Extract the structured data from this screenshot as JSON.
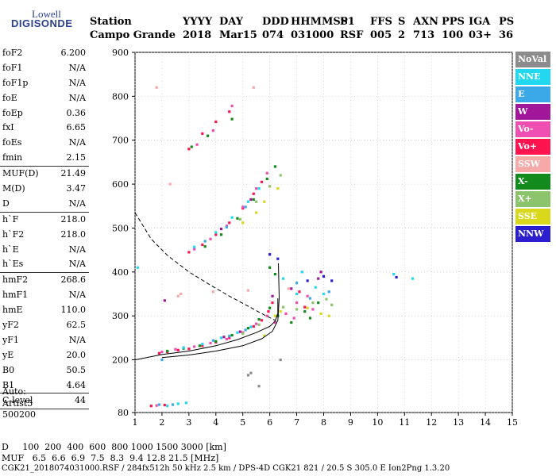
{
  "logo": {
    "line1": "Lowell",
    "line2": "DIGISONDE"
  },
  "header": {
    "row1": [
      "Station",
      "YYYY",
      "DAY",
      "DDD",
      "HHMMSS",
      "P1",
      "FFS",
      "S",
      "AXN",
      "PPS",
      "IGA",
      "PS"
    ],
    "row2": [
      "Campo Grande",
      "2018",
      "Mar15",
      "074",
      "031000",
      "RSF",
      "005",
      "2",
      "713",
      "100",
      "03+",
      "36"
    ]
  },
  "params": {
    "group1": [
      {
        "name": "foF2",
        "value": "6.200"
      },
      {
        "name": "foF1",
        "value": "N/A"
      },
      {
        "name": "foF1p",
        "value": "N/A"
      },
      {
        "name": "foE",
        "value": "N/A"
      },
      {
        "name": "foEp",
        "value": "0.36"
      },
      {
        "name": "fxI",
        "value": "6.65"
      },
      {
        "name": "foEs",
        "value": "N/A"
      },
      {
        "name": "fmin",
        "value": "2.15"
      }
    ],
    "group2": [
      {
        "name": "MUF(D)",
        "value": "21.49"
      },
      {
        "name": "M(D)",
        "value": "3.47"
      },
      {
        "name": "D",
        "value": "N/A"
      }
    ],
    "group3": [
      {
        "name": "h`F",
        "value": "218.0"
      },
      {
        "name": "h`F2",
        "value": "218.0"
      },
      {
        "name": "h`E",
        "value": "N/A"
      },
      {
        "name": "h`Es",
        "value": "N/A"
      }
    ],
    "group4": [
      {
        "name": "hmF2",
        "value": "268.6"
      },
      {
        "name": "hmF1",
        "value": "N/A"
      },
      {
        "name": "hmE",
        "value": "110.0"
      },
      {
        "name": "yF2",
        "value": "62.5"
      },
      {
        "name": "yF1",
        "value": "N/A"
      },
      {
        "name": "yE",
        "value": "20.0"
      },
      {
        "name": "B0",
        "value": "50.5"
      },
      {
        "name": "B1",
        "value": "4.64"
      }
    ],
    "group5": [
      {
        "name": "C-level",
        "value": "44"
      }
    ],
    "auto": [
      "Auto:",
      "Artist5",
      "500200"
    ]
  },
  "legend": [
    {
      "label": "NoVal",
      "color": "#8c8c8c"
    },
    {
      "label": "NNE",
      "color": "#22d8f0"
    },
    {
      "label": "E",
      "color": "#3ba8e8"
    },
    {
      "label": "W",
      "color": "#a0179a"
    },
    {
      "label": "Vo-",
      "color": "#ee4fb0"
    },
    {
      "label": "Vo+",
      "color": "#ff1450"
    },
    {
      "label": "SSW",
      "color": "#f6a9a9"
    },
    {
      "label": "X-",
      "color": "#138a1d"
    },
    {
      "label": "X+",
      "color": "#8cc46e"
    },
    {
      "label": "SSE",
      "color": "#d9d81c"
    },
    {
      "label": "NNW",
      "color": "#2a1ecf"
    }
  ],
  "footer": {
    "d_row": "D     100  200  400  600  800 1000 1500 3000 [km]",
    "muf_row": "MUF   6.5  6.6  6.9  7.5  8.3  9.4 12.8 21.5 [MHz]",
    "info_row": "CGK21_2018074031000.RSF / 284fx512h 50 kHz 2.5 km / DPS-4D CGK21 821 / 20.5 S 305.0 E Ion2Png 1.3.20"
  },
  "chart_data": {
    "type": "scatter",
    "title": "",
    "xlabel": "",
    "ylabel": "",
    "xlim": [
      1,
      15
    ],
    "ylim": [
      80,
      900
    ],
    "x_ticks": [
      1,
      2,
      3,
      4,
      5,
      6,
      7,
      8,
      9,
      10,
      11,
      12,
      13,
      14,
      15
    ],
    "y_ticks": [
      80,
      200,
      300,
      400,
      500,
      600,
      700,
      800,
      900
    ],
    "grid": true,
    "series": [
      {
        "name": "Vo+",
        "color": "#ff1450",
        "points": [
          [
            1.9,
            215
          ],
          [
            2.2,
            218
          ],
          [
            2.6,
            222
          ],
          [
            3.0,
            225
          ],
          [
            3.5,
            232
          ],
          [
            4.0,
            240
          ],
          [
            4.5,
            250
          ],
          [
            5.0,
            262
          ],
          [
            5.4,
            276
          ],
          [
            5.7,
            290
          ],
          [
            5.95,
            310
          ],
          [
            6.1,
            330
          ],
          [
            3.0,
            445
          ],
          [
            3.5,
            462
          ],
          [
            4.0,
            485
          ],
          [
            4.5,
            512
          ],
          [
            5.0,
            545
          ],
          [
            5.4,
            578
          ],
          [
            5.7,
            605
          ],
          [
            3.0,
            680
          ],
          [
            3.5,
            715
          ],
          [
            4.0,
            742
          ],
          [
            4.5,
            765
          ],
          [
            7.1,
            355
          ],
          [
            7.3,
            320
          ],
          [
            1.6,
            95
          ],
          [
            2.1,
            97
          ]
        ]
      },
      {
        "name": "Vo-",
        "color": "#ee4fb0",
        "points": [
          [
            2.0,
            218
          ],
          [
            2.5,
            224
          ],
          [
            3.2,
            230
          ],
          [
            3.8,
            238
          ],
          [
            4.4,
            247
          ],
          [
            5.0,
            262
          ],
          [
            5.5,
            282
          ],
          [
            5.9,
            300
          ],
          [
            6.2,
            285
          ],
          [
            6.6,
            305
          ],
          [
            7.0,
            330
          ],
          [
            7.4,
            345
          ],
          [
            3.2,
            452
          ],
          [
            3.8,
            475
          ],
          [
            4.4,
            505
          ],
          [
            5.0,
            548
          ],
          [
            5.5,
            590
          ],
          [
            5.9,
            625
          ],
          [
            3.3,
            690
          ],
          [
            3.9,
            722
          ],
          [
            4.6,
            778
          ],
          [
            6.9,
            295
          ],
          [
            7.6,
            315
          ],
          [
            1.8,
            96
          ]
        ]
      },
      {
        "name": "X-",
        "color": "#138a1d",
        "points": [
          [
            2.2,
            220
          ],
          [
            2.8,
            226
          ],
          [
            3.4,
            232
          ],
          [
            4.0,
            242
          ],
          [
            4.6,
            256
          ],
          [
            5.2,
            272
          ],
          [
            5.6,
            292
          ],
          [
            6.0,
            318
          ],
          [
            6.3,
            300
          ],
          [
            6.8,
            285
          ],
          [
            7.3,
            310
          ],
          [
            7.8,
            330
          ],
          [
            3.6,
            458
          ],
          [
            4.2,
            485
          ],
          [
            4.8,
            522
          ],
          [
            5.4,
            565
          ],
          [
            5.9,
            612
          ],
          [
            6.2,
            640
          ],
          [
            3.1,
            685
          ],
          [
            3.7,
            710
          ],
          [
            4.6,
            748
          ],
          [
            6.0,
            410
          ],
          [
            6.2,
            395
          ],
          [
            7.5,
            295
          ]
        ]
      },
      {
        "name": "X+",
        "color": "#8cc46e",
        "points": [
          [
            6.5,
            320
          ],
          [
            7.0,
            315
          ],
          [
            7.6,
            330
          ],
          [
            8.1,
            338
          ],
          [
            8.3,
            325
          ],
          [
            4.9,
            520
          ],
          [
            5.5,
            560
          ],
          [
            6.0,
            595
          ],
          [
            6.4,
            620
          ],
          [
            5.0,
            260
          ],
          [
            5.6,
            280
          ]
        ]
      },
      {
        "name": "SSE",
        "color": "#d9d81c",
        "points": [
          [
            7.4,
            318
          ],
          [
            7.9,
            305
          ],
          [
            8.2,
            300
          ],
          [
            5.0,
            512
          ],
          [
            5.5,
            535
          ],
          [
            5.8,
            560
          ],
          [
            6.3,
            590
          ],
          [
            5.8,
            255
          ],
          [
            6.2,
            300
          ],
          [
            6.4,
            310
          ]
        ]
      },
      {
        "name": "NNE",
        "color": "#22d8f0",
        "points": [
          [
            3.5,
            236
          ],
          [
            4.2,
            250
          ],
          [
            4.8,
            262
          ],
          [
            5.3,
            275
          ],
          [
            7.2,
            400
          ],
          [
            7.7,
            365
          ],
          [
            8.0,
            350
          ],
          [
            3.2,
            457
          ],
          [
            4.0,
            490
          ],
          [
            4.6,
            524
          ],
          [
            5.2,
            560
          ],
          [
            5.6,
            590
          ],
          [
            2.8,
            228
          ],
          [
            2.2,
            95
          ],
          [
            2.6,
            100
          ],
          [
            2.9,
            102
          ],
          [
            6.5,
            385
          ],
          [
            7.0,
            350
          ],
          [
            1.1,
            410
          ],
          [
            10.6,
            395
          ],
          [
            11.3,
            385
          ]
        ]
      },
      {
        "name": "E",
        "color": "#3ba8e8",
        "points": [
          [
            3.9,
            244
          ],
          [
            4.5,
            254
          ],
          [
            5.1,
            268
          ],
          [
            7.0,
            375
          ],
          [
            7.5,
            340
          ],
          [
            8.2,
            355
          ],
          [
            3.6,
            470
          ],
          [
            4.4,
            502
          ],
          [
            5.1,
            548
          ],
          [
            2.0,
            200
          ],
          [
            1.9,
            98
          ],
          [
            2.4,
            98
          ]
        ]
      },
      {
        "name": "W",
        "color": "#a0179a",
        "points": [
          [
            4.3,
            252
          ],
          [
            4.9,
            264
          ],
          [
            6.1,
            345
          ],
          [
            6.8,
            362
          ],
          [
            7.8,
            385
          ],
          [
            4.2,
            498
          ],
          [
            5.3,
            565
          ],
          [
            7.9,
            400
          ],
          [
            2.1,
            335
          ]
        ]
      },
      {
        "name": "NNW",
        "color": "#2a1ecf",
        "points": [
          [
            6.3,
            430
          ],
          [
            7.4,
            380
          ],
          [
            8.0,
            390
          ],
          [
            8.3,
            380
          ],
          [
            6.0,
            440
          ],
          [
            10.7,
            388
          ]
        ]
      },
      {
        "name": "SSW",
        "color": "#f6a9a9",
        "points": [
          [
            2.7,
            350
          ],
          [
            3.9,
            355
          ],
          [
            5.2,
            358
          ],
          [
            6.7,
            362
          ],
          [
            1.8,
            820
          ],
          [
            2.3,
            600
          ],
          [
            5.4,
            820
          ],
          [
            2.6,
            345
          ]
        ]
      },
      {
        "name": "NoVal",
        "color": "#8c8c8c",
        "points": [
          [
            5.3,
            170
          ],
          [
            5.6,
            140
          ],
          [
            6.4,
            200
          ],
          [
            5.2,
            165
          ]
        ]
      }
    ],
    "curves": [
      {
        "style": "dashed",
        "points": [
          [
            1,
            535
          ],
          [
            1.6,
            475
          ],
          [
            2.2,
            438
          ],
          [
            3.0,
            400
          ],
          [
            3.8,
            370
          ],
          [
            4.5,
            345
          ],
          [
            5.2,
            322
          ],
          [
            5.8,
            302
          ],
          [
            6.2,
            290
          ]
        ]
      },
      {
        "style": "solid",
        "points": [
          [
            1,
            200
          ],
          [
            2.0,
            212
          ],
          [
            3.0,
            220
          ],
          [
            4.0,
            232
          ],
          [
            4.8,
            246
          ],
          [
            5.5,
            262
          ],
          [
            6.0,
            276
          ],
          [
            6.2,
            288
          ],
          [
            6.3,
            306
          ],
          [
            6.3,
            340
          ]
        ]
      },
      {
        "style": "solid",
        "points": [
          [
            2.0,
            205
          ],
          [
            3.0,
            211
          ],
          [
            4.0,
            220
          ],
          [
            5.0,
            232
          ],
          [
            5.7,
            248
          ],
          [
            6.1,
            265
          ],
          [
            6.3,
            290
          ],
          [
            6.35,
            340
          ],
          [
            6.32,
            420
          ]
        ]
      }
    ]
  }
}
